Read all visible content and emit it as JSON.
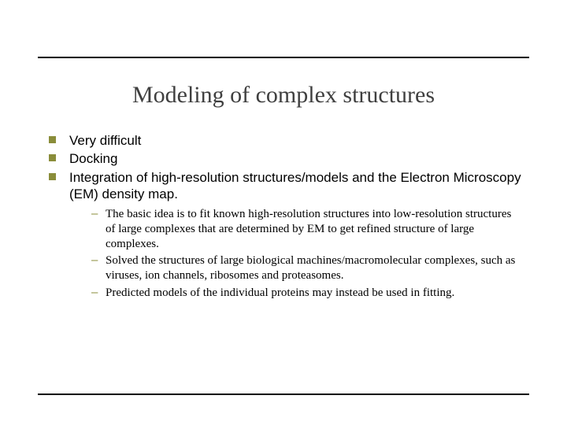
{
  "colors": {
    "rule": "#000000",
    "title": "#3f3f3f",
    "bullet_square": "#8a8d3a",
    "sub_dash": "#8a8d3a",
    "body_text": "#000000",
    "background": "#ffffff"
  },
  "title": "Modeling of complex structures",
  "typography": {
    "title_font": "Times New Roman",
    "title_size_pt": 30,
    "bullet_font": "Arial",
    "bullet_size_pt": 17,
    "sub_font": "Times New Roman",
    "sub_size_pt": 15
  },
  "bullets": {
    "0": {
      "text": "Very difficult"
    },
    "1": {
      "text": "Docking"
    },
    "2": {
      "text": "Integration of high-resolution structures/models and the Electron Microscopy (EM) density map."
    }
  },
  "subbullets": {
    "0": {
      "text": "The basic idea is to fit known high-resolution structures into low-resolution structures of large complexes that are determined by EM to get refined structure of large complexes."
    },
    "1": {
      "text": "Solved the structures of large biological machines/macromolecular complexes, such as viruses, ion channels, ribosomes and proteasomes."
    },
    "2": {
      "text": "Predicted models of the individual proteins may instead be used in fitting."
    }
  }
}
